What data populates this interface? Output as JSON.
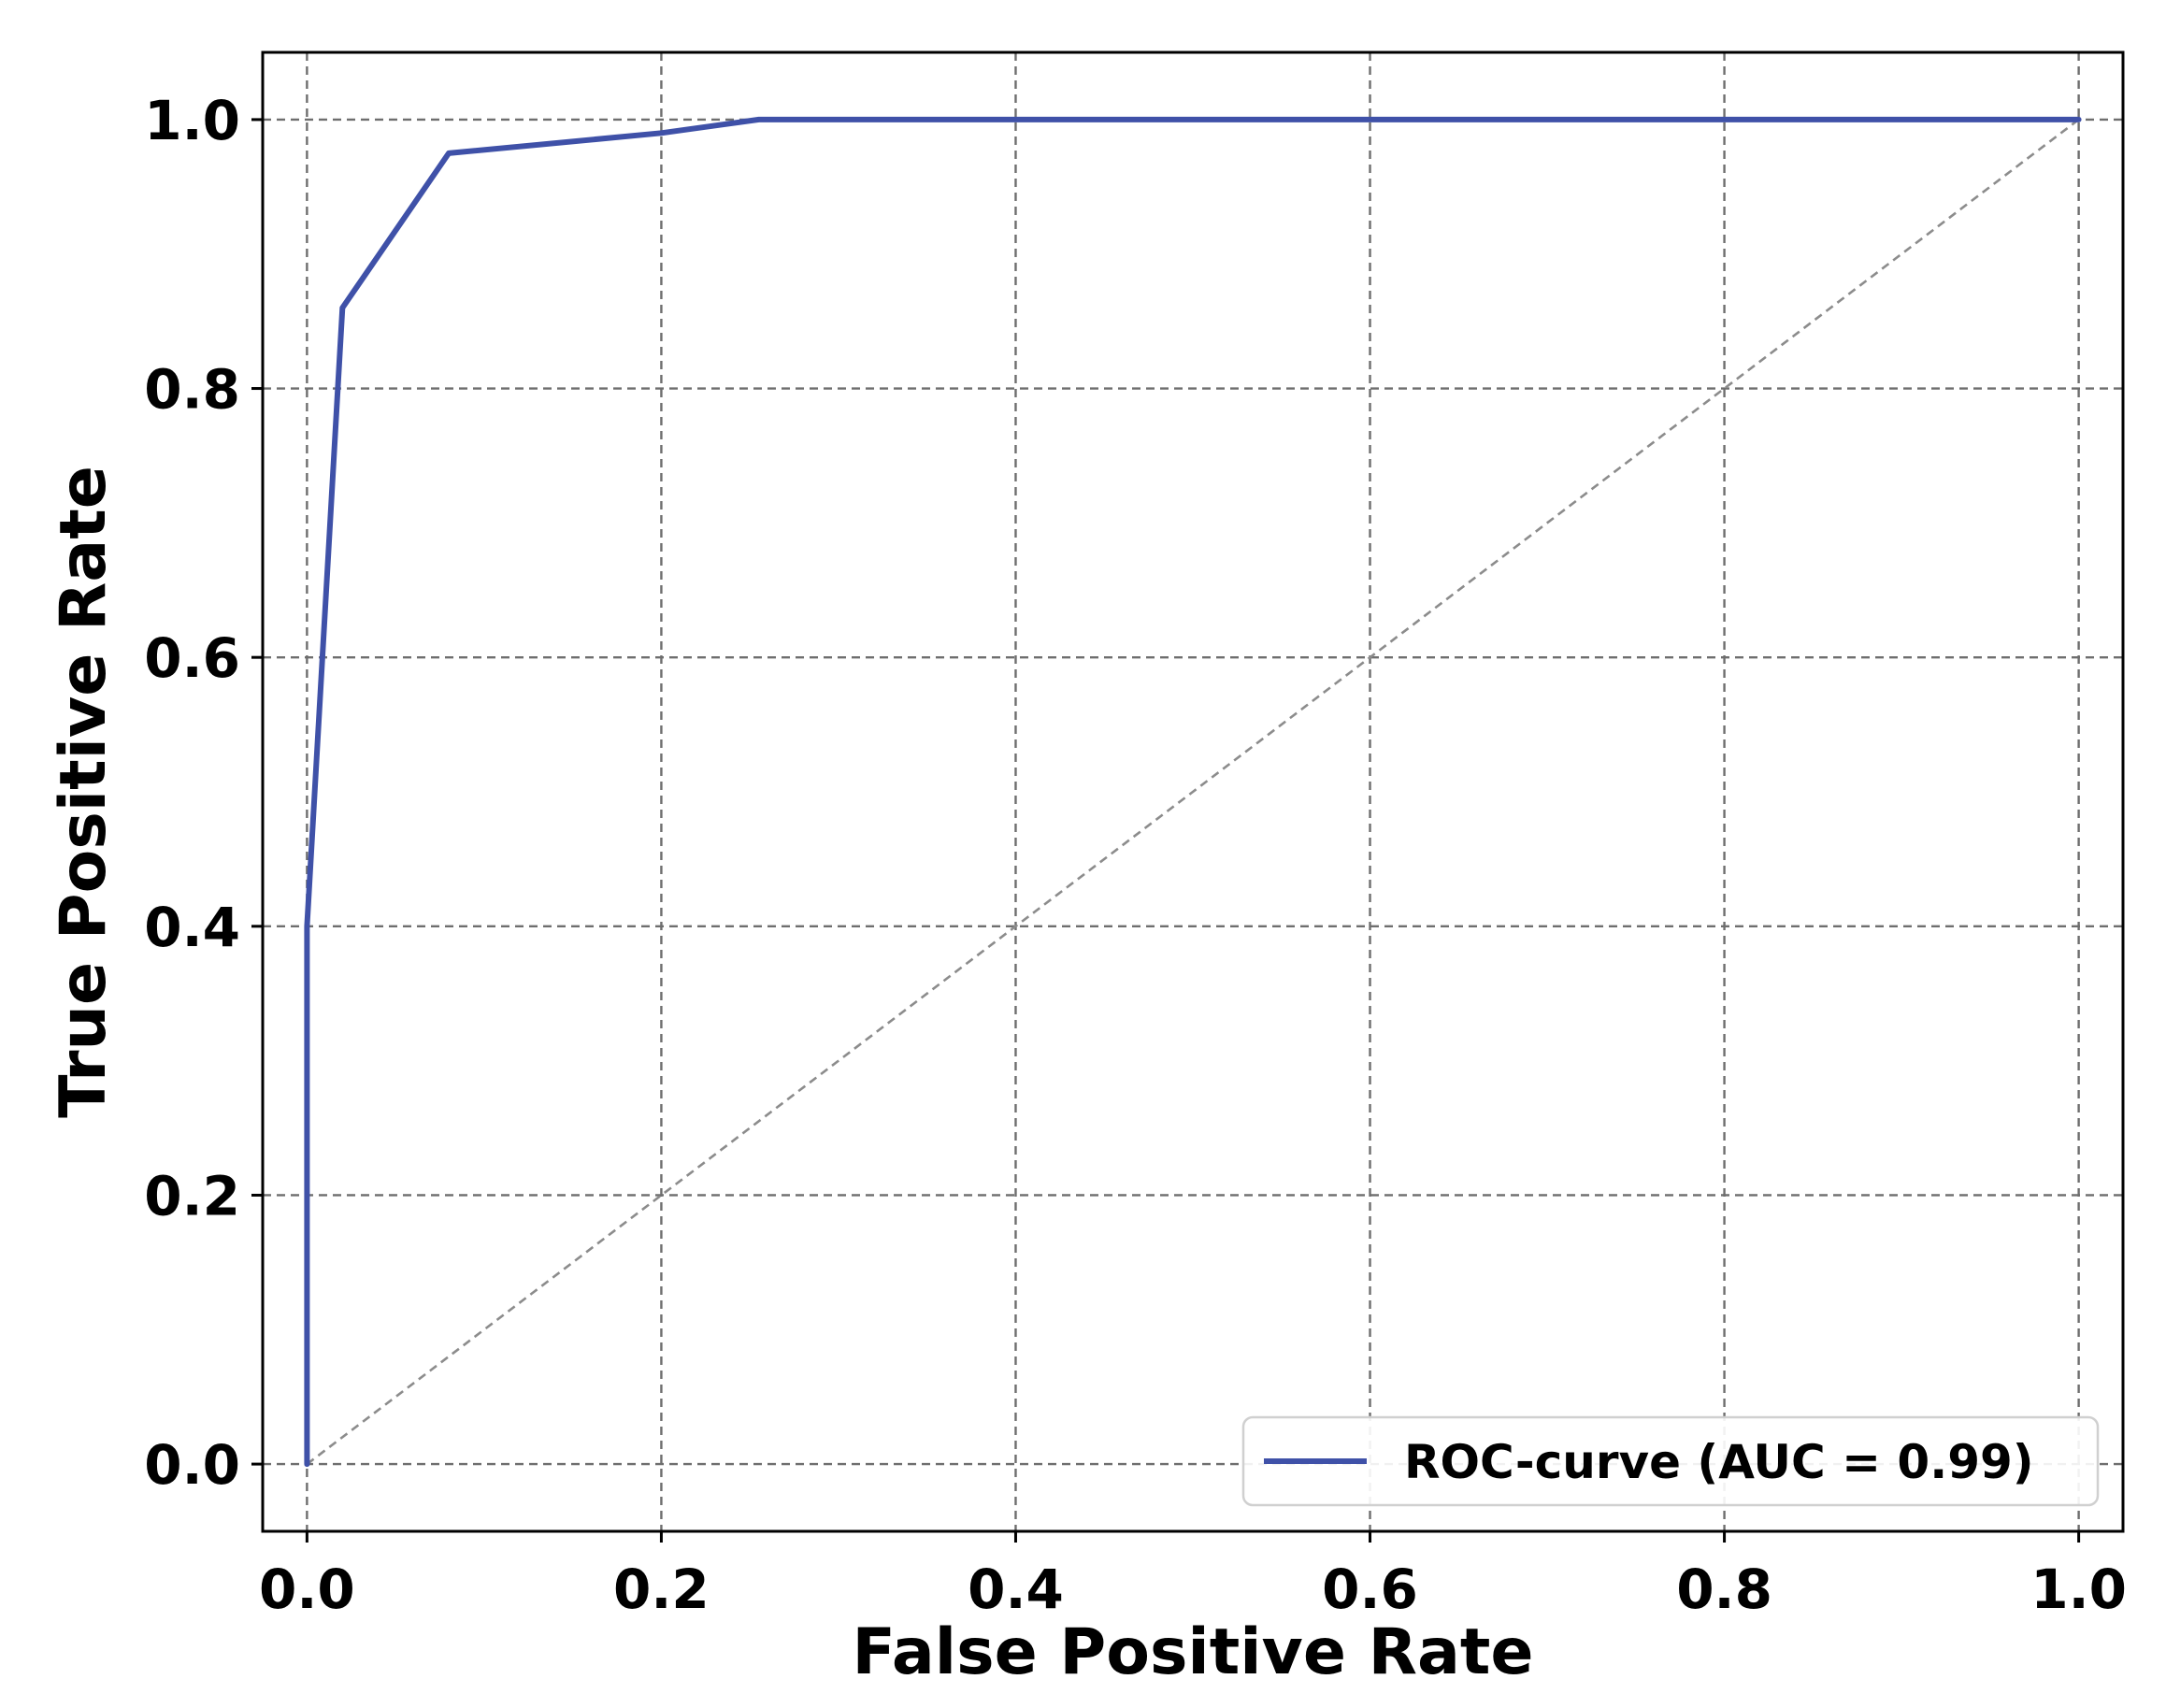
{
  "chart_data": {
    "type": "line",
    "title": "",
    "xlabel": "False Positive Rate",
    "ylabel": "True Positive Rate",
    "xlim": [
      -0.025,
      1.025
    ],
    "ylim": [
      -0.05,
      1.05
    ],
    "xticks": [
      0.0,
      0.2,
      0.4,
      0.6,
      0.8,
      1.0
    ],
    "yticks": [
      0.0,
      0.2,
      0.4,
      0.6,
      0.8,
      1.0
    ],
    "xtick_labels": [
      "0.0",
      "0.2",
      "0.4",
      "0.6",
      "0.8",
      "1.0"
    ],
    "ytick_labels": [
      "0.0",
      "0.2",
      "0.4",
      "0.6",
      "0.8",
      "1.0"
    ],
    "grid": true,
    "legend_position": "lower-right",
    "series": [
      {
        "name": "ROC-curve (AUC = 0.99)",
        "color": "#3f51a8",
        "x": [
          0.0,
          0.0,
          0.02,
          0.08,
          0.2,
          0.255,
          1.0
        ],
        "y": [
          0.0,
          0.4,
          0.86,
          0.975,
          0.99,
          1.0,
          1.0
        ]
      }
    ],
    "reference_line": {
      "color": "#8c8c8c",
      "x": [
        0.0,
        1.0
      ],
      "y": [
        0.0,
        1.0
      ]
    }
  }
}
